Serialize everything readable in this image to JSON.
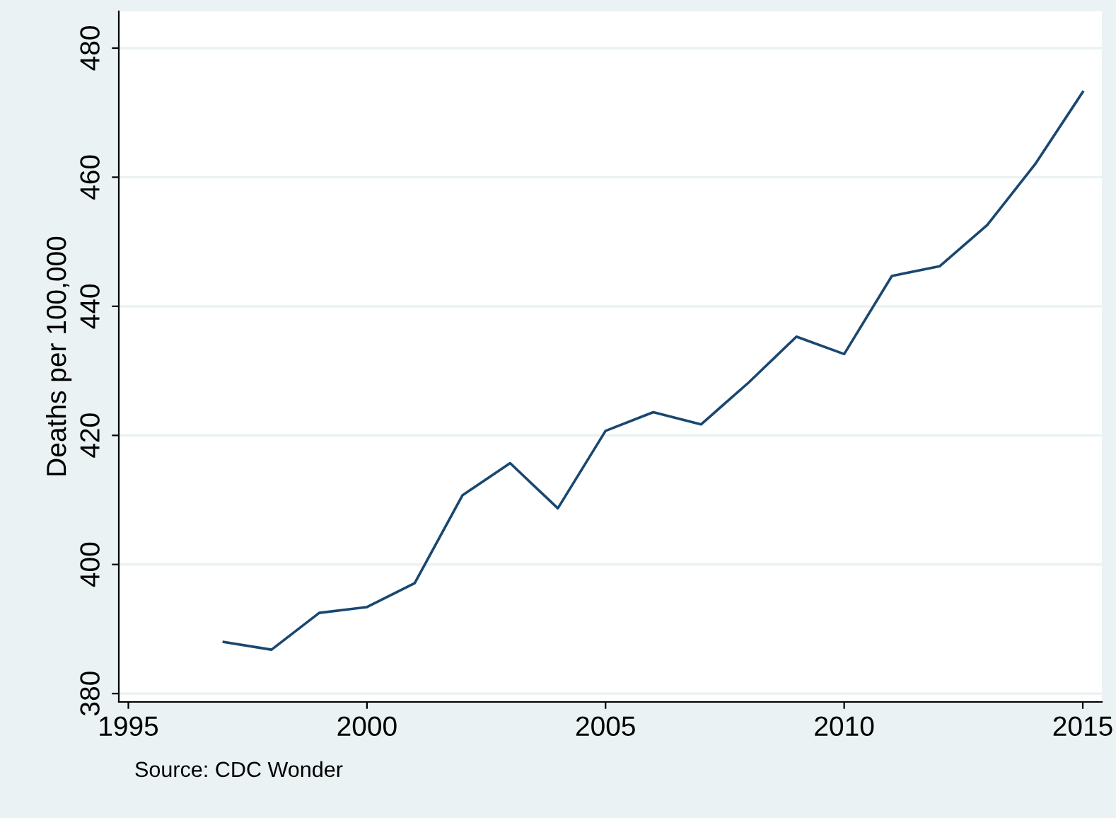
{
  "chart_data": {
    "type": "line",
    "ylabel": "Deaths per 100,000",
    "x": [
      1997,
      1998,
      1999,
      2000,
      2001,
      2002,
      2003,
      2004,
      2005,
      2006,
      2007,
      2008,
      2009,
      2010,
      2011,
      2012,
      2013,
      2014,
      2015
    ],
    "series": [
      {
        "color": "#1a476f",
        "values": [
          388,
          386.8,
          392.5,
          393.4,
          397.1,
          410.7,
          415.7,
          408.7,
          420.7,
          423.6,
          421.7,
          428.2,
          435.3,
          432.6,
          444.7,
          446.2,
          452.6,
          462.0,
          473.2
        ]
      }
    ],
    "xlim": [
      1994.8,
      2015.4
    ],
    "xticks": [
      1995,
      2000,
      2005,
      2010,
      2015
    ],
    "ylim": [
      378.7,
      485.7
    ],
    "yticks": [
      380,
      400,
      420,
      440,
      460,
      480
    ],
    "grid": "y",
    "legend": false,
    "marker": "none",
    "line_style": "solid",
    "annotations": [
      "Source: CDC Wonder"
    ]
  }
}
